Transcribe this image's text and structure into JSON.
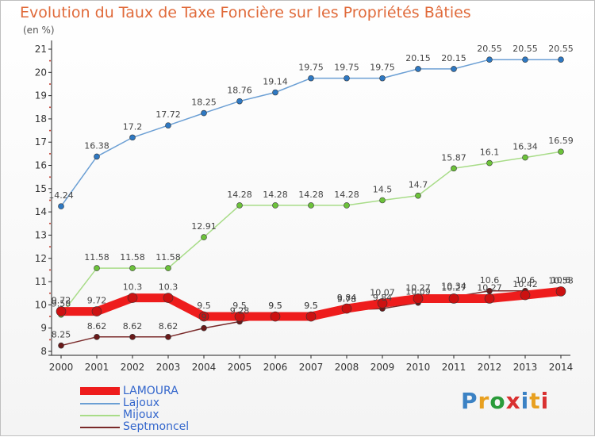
{
  "title": "Evolution du Taux de Taxe Foncière sur les Propriétés Bâties",
  "subtitle": "(en %)",
  "logo": {
    "text": "Proxiti",
    "colors": [
      "#3b82c4",
      "#e8a020",
      "#2a9b3a",
      "#d93030",
      "#3b82c4",
      "#e8a020",
      "#d93030"
    ]
  },
  "chart_data": {
    "type": "line",
    "x": [
      2000,
      2001,
      2002,
      2003,
      2004,
      2005,
      2006,
      2007,
      2008,
      2009,
      2010,
      2011,
      2012,
      2013,
      2014
    ],
    "ylim": [
      8,
      21
    ],
    "yticks": [
      8,
      9,
      10,
      11,
      12,
      13,
      14,
      15,
      16,
      17,
      18,
      19,
      20,
      21
    ],
    "grid": false,
    "legend_position": "bottom-left",
    "series": [
      {
        "name": "LAMOURA",
        "color": "#ee1c1c",
        "marker": "#cc1111",
        "values": [
          9.72,
          9.72,
          10.3,
          10.3,
          9.5,
          9.5,
          9.5,
          9.5,
          9.84,
          10.07,
          10.27,
          10.27,
          10.27,
          10.42,
          10.58
        ]
      },
      {
        "name": "Lajoux",
        "color": "#6b9fd4",
        "marker": "#2e78c2",
        "values": [
          14.24,
          16.38,
          17.2,
          17.72,
          18.25,
          18.76,
          19.14,
          19.75,
          19.75,
          19.75,
          20.15,
          20.15,
          20.55,
          20.55,
          20.55
        ]
      },
      {
        "name": "Mijoux",
        "color": "#a8dc88",
        "marker": "#6cc23a",
        "values": [
          9.58,
          11.58,
          11.58,
          11.58,
          12.91,
          14.28,
          14.28,
          14.28,
          14.28,
          14.5,
          14.7,
          15.87,
          16.1,
          16.34,
          16.59
        ]
      },
      {
        "name": "Septmoncel",
        "color": "#7a2a2a",
        "marker": "#6a1a1a",
        "values": [
          8.25,
          8.62,
          8.62,
          8.62,
          9.0,
          9.28,
          9.5,
          9.5,
          9.78,
          9.84,
          10.09,
          10.34,
          10.6,
          10.6,
          10.6
        ]
      }
    ]
  }
}
